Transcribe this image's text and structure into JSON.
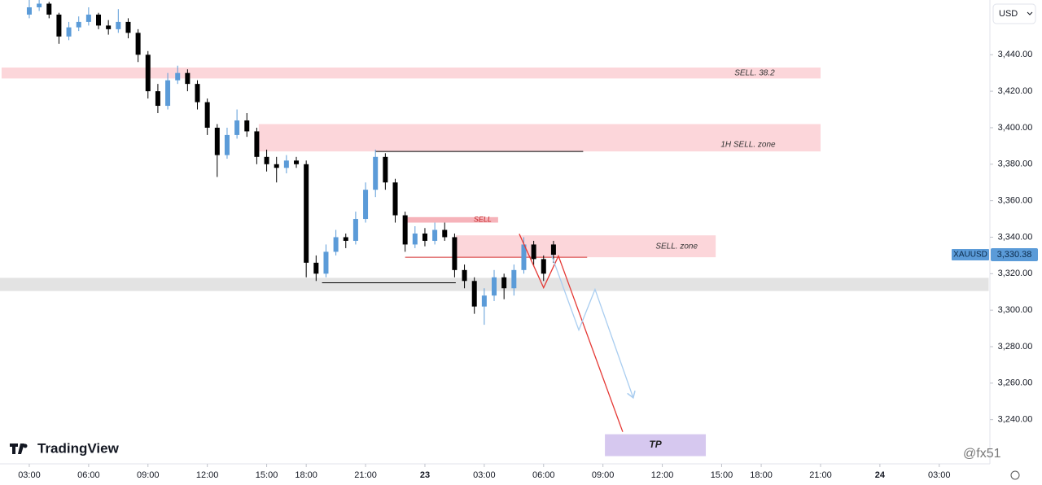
{
  "chart_data": {
    "type": "candlestick",
    "currency": "USD",
    "symbol": "XAUUSD",
    "brand": "TradingView",
    "watermark": "@fx51",
    "last_price": {
      "value": 3330.38,
      "label": "3,330.38"
    },
    "up_color": "#5b9bd8",
    "down_color": "#000000",
    "xlim": [
      -1.48,
      48.52
    ],
    "ylim": [
      3218,
      3470
    ],
    "xticks": [
      {
        "value": 0,
        "label": "03:00"
      },
      {
        "value": 3,
        "label": "06:00"
      },
      {
        "value": 6,
        "label": "09:00"
      },
      {
        "value": 9,
        "label": "12:00"
      },
      {
        "value": 12,
        "label": "15:00"
      },
      {
        "value": 14,
        "label": "18:00"
      },
      {
        "value": 17,
        "label": "21:00"
      },
      {
        "value": 20,
        "label": "23"
      },
      {
        "value": 23,
        "label": "03:00"
      },
      {
        "value": 26,
        "label": "06:00"
      },
      {
        "value": 29,
        "label": "09:00"
      },
      {
        "value": 32,
        "label": "12:00"
      },
      {
        "value": 35,
        "label": "15:00"
      },
      {
        "value": 37,
        "label": "18:00"
      },
      {
        "value": 40,
        "label": "21:00"
      },
      {
        "value": 43,
        "label": "24"
      },
      {
        "value": 46,
        "label": "03:00"
      }
    ],
    "yticks": [
      {
        "value": 3240,
        "label": "3,240.00"
      },
      {
        "value": 3260,
        "label": "3,260.00"
      },
      {
        "value": 3280,
        "label": "3,280.00"
      },
      {
        "value": 3300,
        "label": "3,300.00"
      },
      {
        "value": 3320,
        "label": "3,320.00"
      },
      {
        "value": 3340,
        "label": "3,340.00"
      },
      {
        "value": 3360,
        "label": "3,360.00"
      },
      {
        "value": 3380,
        "label": "3,380.00"
      },
      {
        "value": 3400,
        "label": "3,400.00"
      },
      {
        "value": 3420,
        "label": "3,420.00"
      },
      {
        "value": 3440,
        "label": "3,440.00"
      }
    ],
    "x": [
      0,
      0.5,
      1,
      1.5,
      2,
      2.5,
      3,
      3.5,
      4,
      4.5,
      5,
      5.5,
      6,
      6.5,
      7,
      7.5,
      8,
      8.5,
      9,
      9.5,
      10,
      10.5,
      11,
      11.5,
      12,
      12.5,
      13,
      13.5,
      14,
      14.5,
      15,
      15.5,
      16,
      16.5,
      17,
      17.5,
      18,
      18.5,
      19,
      19.5,
      20,
      20.5,
      21,
      21.5,
      22,
      22.5,
      23,
      23.5,
      24,
      24.5,
      25,
      25.5,
      26,
      26.5
    ],
    "open": [
      3462,
      3466,
      3468,
      3462,
      3450,
      3455,
      3458,
      3462,
      3456,
      3454,
      3458,
      3452,
      3440,
      3420,
      3412,
      3426,
      3430,
      3424,
      3414,
      3400,
      3385,
      3396,
      3404,
      3398,
      3384,
      3380,
      3378,
      3382,
      3380,
      3326,
      3320,
      3332,
      3340,
      3338,
      3350,
      3366,
      3384,
      3370,
      3352,
      3336,
      3342,
      3338,
      3344,
      3340,
      3322,
      3316,
      3302,
      3308,
      3318,
      3312,
      3322,
      3336,
      3328,
      3336
    ],
    "high": [
      3470,
      3470,
      3469,
      3463,
      3458,
      3461,
      3466,
      3463,
      3459,
      3465,
      3460,
      3454,
      3442,
      3424,
      3430,
      3434,
      3432,
      3426,
      3416,
      3402,
      3400,
      3410,
      3408,
      3400,
      3388,
      3384,
      3385,
      3384,
      3382,
      3330,
      3336,
      3344,
      3342,
      3354,
      3370,
      3388,
      3386,
      3372,
      3354,
      3346,
      3345,
      3348,
      3348,
      3342,
      3325,
      3318,
      3312,
      3322,
      3320,
      3325,
      3340,
      3338,
      3330,
      3338
    ],
    "low": [
      3460,
      3464,
      3460,
      3446,
      3448,
      3453,
      3456,
      3454,
      3451,
      3452,
      3449,
      3436,
      3416,
      3408,
      3410,
      3424,
      3420,
      3410,
      3396,
      3373,
      3383,
      3394,
      3395,
      3380,
      3376,
      3370,
      3375,
      3378,
      3318,
      3316,
      3318,
      3330,
      3334,
      3336,
      3348,
      3362,
      3366,
      3348,
      3332,
      3334,
      3335,
      3336,
      3338,
      3318,
      3312,
      3298,
      3292,
      3305,
      3306,
      3308,
      3320,
      3324,
      3316,
      3326
    ],
    "close": [
      3466,
      3468,
      3462,
      3450,
      3455,
      3458,
      3462,
      3456,
      3454,
      3458,
      3452,
      3440,
      3420,
      3412,
      3426,
      3430,
      3424,
      3414,
      3400,
      3385,
      3396,
      3404,
      3398,
      3384,
      3380,
      3378,
      3382,
      3380,
      3326,
      3320,
      3332,
      3340,
      3338,
      3350,
      3366,
      3384,
      3370,
      3352,
      3336,
      3342,
      3338,
      3344,
      3340,
      3322,
      3316,
      3302,
      3308,
      3318,
      3312,
      3322,
      3336,
      3328,
      3320,
      3330.38
    ],
    "zones": [
      {
        "label": "SELL. 38.2",
        "color": "#fcd6da",
        "x": [
          -1.4,
          40
        ],
        "y": [
          3427,
          3433
        ]
      },
      {
        "label": "1H SELL. zone",
        "color": "#fcd6da",
        "x": [
          11.6,
          40
        ],
        "y": [
          3387,
          3402
        ]
      },
      {
        "label": "SELL",
        "color": "#f6b3ba",
        "x": [
          19.1,
          23.7
        ],
        "y": [
          3348,
          3351
        ]
      },
      {
        "label": "SELL. zone",
        "color": "#fcd6da",
        "x": [
          21.56,
          34.7
        ],
        "y": [
          3329,
          3341
        ]
      },
      {
        "color": "#e3e3e3",
        "x": [
          -1.48,
          48.5
        ],
        "y": [
          3310.5,
          3317.7
        ]
      },
      {
        "label": "TP",
        "color": "#d6c8ef",
        "x": [
          29.1,
          34.2
        ],
        "y": [
          3220,
          3232
        ]
      }
    ],
    "levels": [
      {
        "color": "#000000",
        "x": [
          17.5,
          28
        ],
        "y": 3387
      },
      {
        "color": "#000000",
        "x": [
          14.8,
          21.56
        ],
        "y": 3315
      },
      {
        "color": "#d32f2f",
        "x": [
          19,
          28.2
        ],
        "y": 3329
      }
    ],
    "paths": [
      {
        "color": "#e53935",
        "x": [
          24.77,
          26,
          26.75,
          30
        ],
        "y": [
          3341.8,
          3312.3,
          3329.7,
          3233.3
        ]
      },
      {
        "color": "#a9cdf0",
        "x": [
          26.4,
          27.78,
          28.6,
          30.53
        ],
        "y": [
          3330.2,
          3289.1,
          3311.4,
          3252
        ]
      }
    ]
  }
}
